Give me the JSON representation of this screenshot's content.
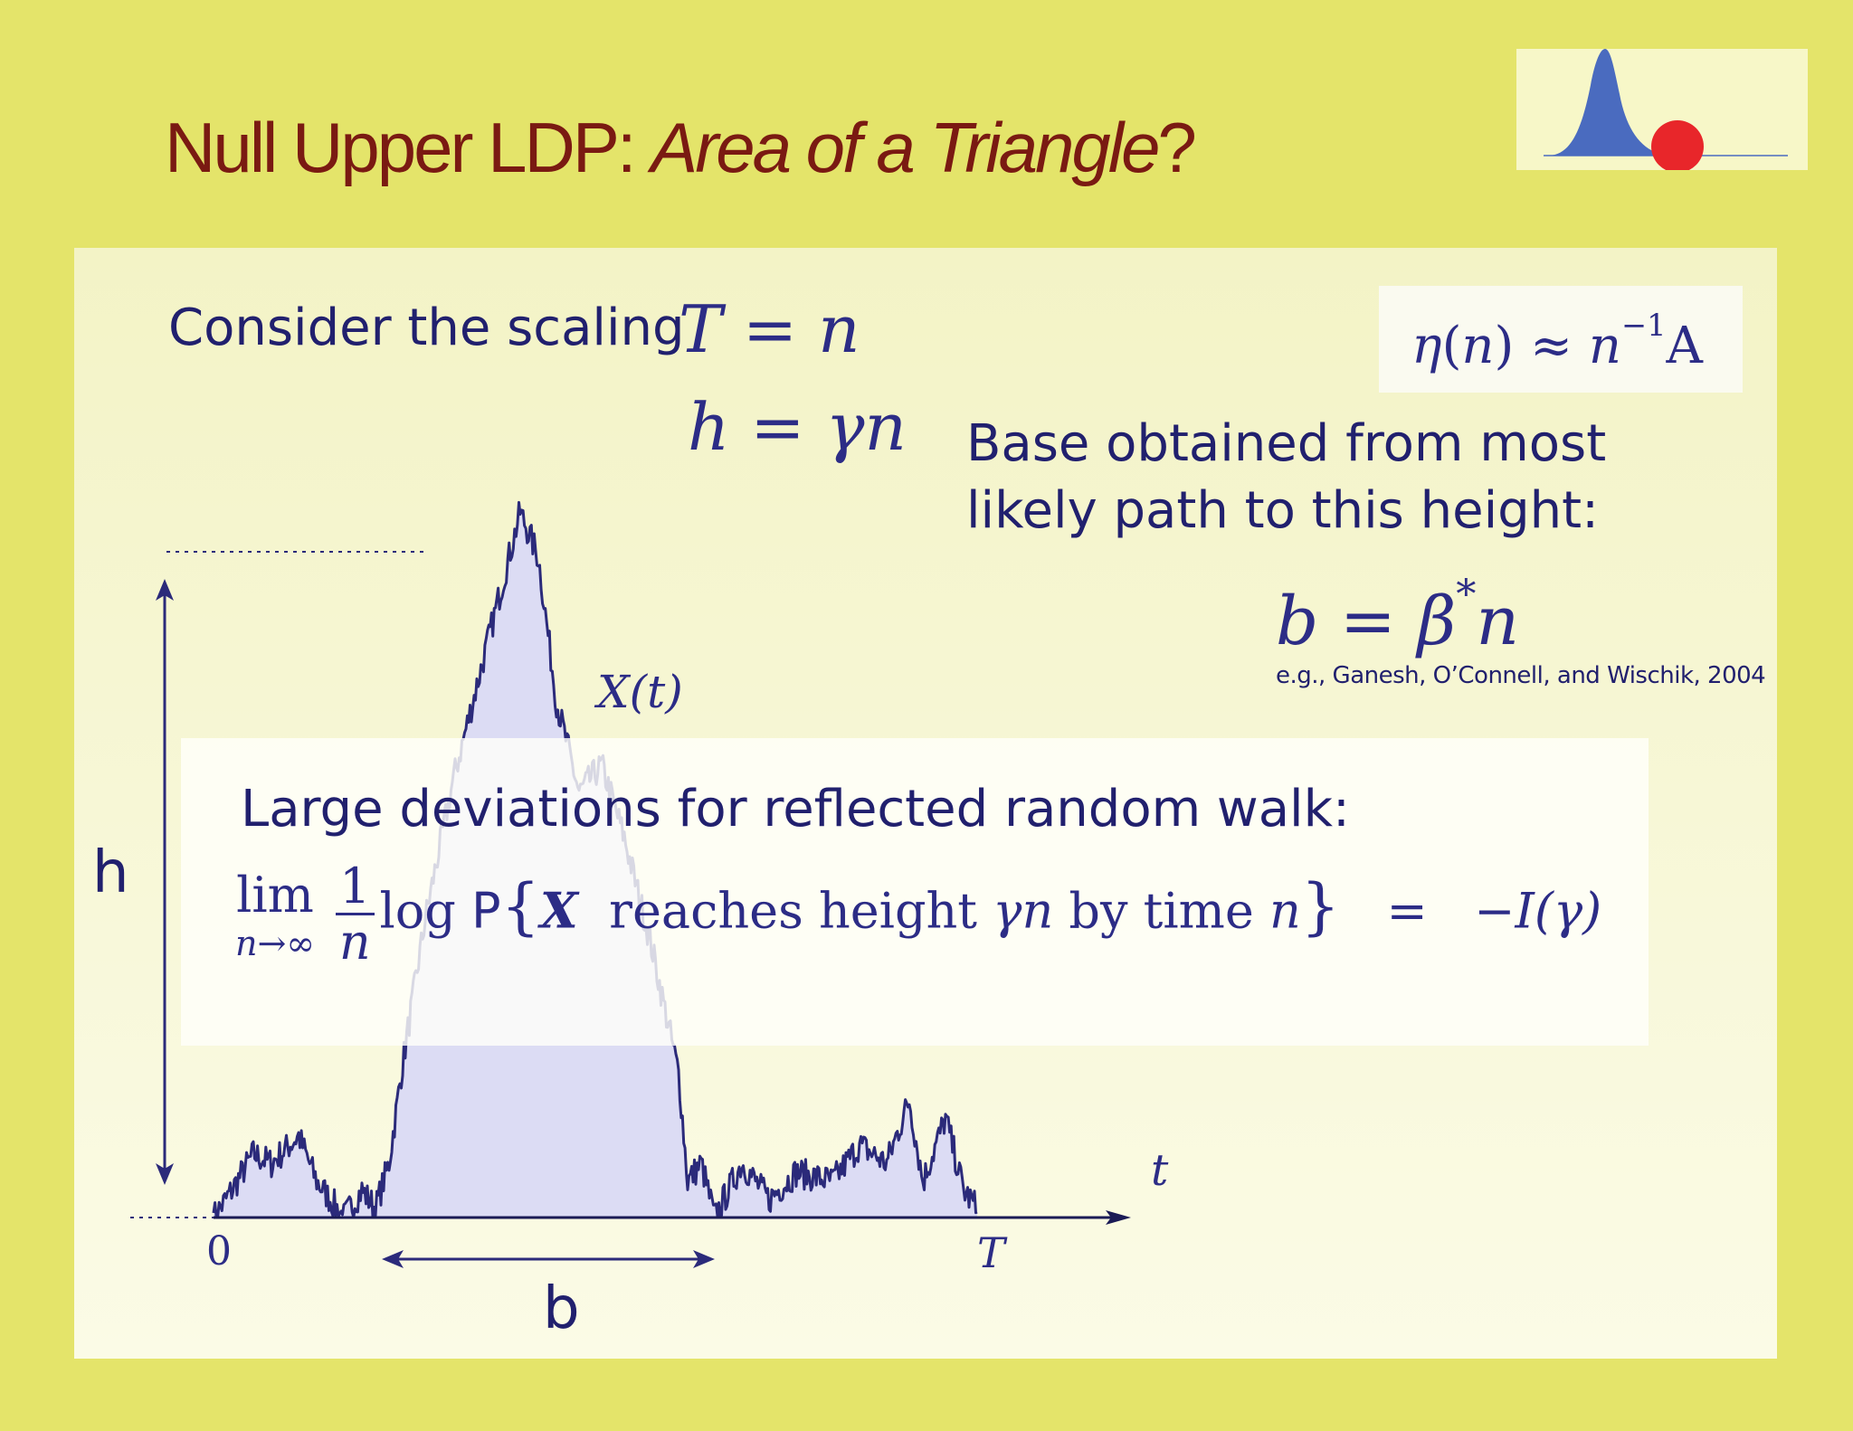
{
  "slide": {
    "title_main": "Null Upper LDP: ",
    "title_italic": "Area of a Triangle",
    "title_end": "?"
  },
  "scaling": {
    "lead": "Consider the scaling",
    "eq1_lhs": "T",
    "eq1_rhs": "n",
    "eq2_lhs": "h",
    "eq2_gamma": "γ",
    "eq2_n": "n",
    "equals": "="
  },
  "eta_box": {
    "eta": "η",
    "n": "n",
    "approx": "≈",
    "exp": "−1",
    "A": "A"
  },
  "base": {
    "line1": "Base obtained from most",
    "line2": "likely path to this height:",
    "b": "b",
    "beta": "β",
    "star": "*",
    "n": "n",
    "citation": "e.g., Ganesh, O’Connell, and Wischik,  2004"
  },
  "diagram": {
    "process_label": "X(t)",
    "h_label": "h",
    "b_label": "b",
    "t_label": "t",
    "zero_label": "0",
    "T_label": "T"
  },
  "ldp_box": {
    "heading": "Large deviations for reflected random walk:",
    "lim": "lim",
    "lim_sub": "n→∞",
    "frac_num": "1",
    "frac_den": "n",
    "log": "log",
    "P": "P",
    "X": "X",
    "reaches": "reaches height",
    "gamma_n": "γn",
    "by_time": "by time",
    "n": "n",
    "equals": "=",
    "rate": "−I(γ)"
  },
  "colors": {
    "background": "#e4e46a",
    "panel_top": "#f3f3c6",
    "title": "#7a1a12",
    "text": "#21206e",
    "path": "#2b2a7a",
    "fill": "#dcdcf4",
    "thumb_dist": "#4a6bbf",
    "thumb_dot": "#e8262a"
  }
}
